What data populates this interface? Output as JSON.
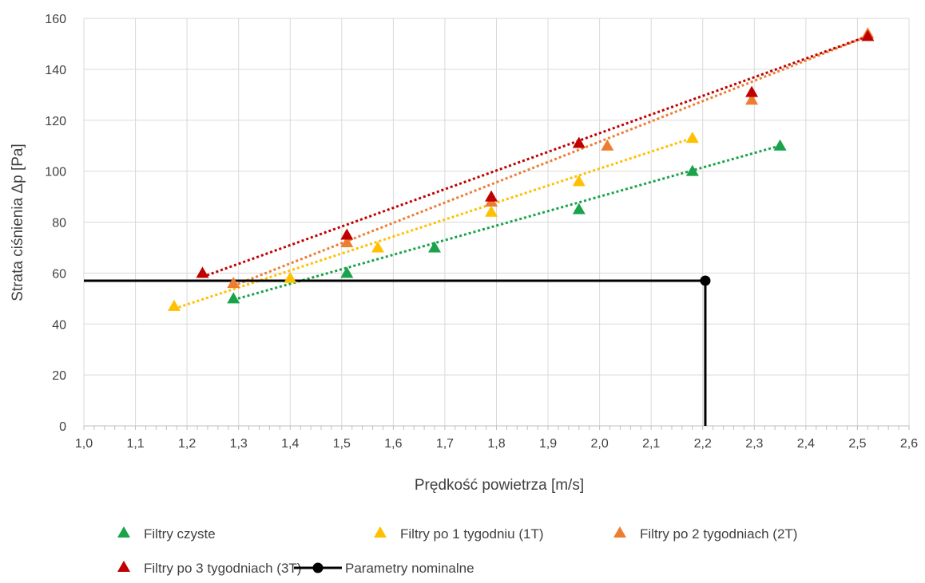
{
  "chart_data": {
    "type": "scatter",
    "title": "",
    "xlabel": "Prędkość powietrza [m/s]",
    "ylabel": "Strata ciśnienia Δp [Pa]",
    "xlim": [
      1.0,
      2.6
    ],
    "ylim": [
      0,
      160
    ],
    "xticks": [
      "1,0",
      "1,1",
      "1,2",
      "1,3",
      "1,4",
      "1,5",
      "1,6",
      "1,7",
      "1,8",
      "1,9",
      "2,0",
      "2,1",
      "2,2",
      "2,3",
      "2,4",
      "2,5",
      "2,6"
    ],
    "yticks": [
      "0",
      "20",
      "40",
      "60",
      "80",
      "100",
      "120",
      "140",
      "160"
    ],
    "grid": true,
    "legend_position": "bottom",
    "series": [
      {
        "name": "Filtry czyste",
        "color": "#1aa34a",
        "marker": "triangle",
        "points": [
          [
            1.29,
            50
          ],
          [
            1.51,
            60
          ],
          [
            1.68,
            70
          ],
          [
            1.96,
            85
          ],
          [
            2.18,
            100
          ],
          [
            2.35,
            110
          ]
        ],
        "trendline": {
          "style": "dotted",
          "from": [
            1.29,
            49.5
          ],
          "to": [
            2.35,
            110
          ]
        }
      },
      {
        "name": "Filtry po 1 tygodniu (1T)",
        "color": "#ffc000",
        "marker": "triangle",
        "points": [
          [
            1.175,
            47
          ],
          [
            1.4,
            58
          ],
          [
            1.57,
            70
          ],
          [
            1.79,
            84
          ],
          [
            1.96,
            96
          ],
          [
            2.18,
            113
          ]
        ],
        "trendline": {
          "style": "dotted",
          "from": [
            1.175,
            46
          ],
          "to": [
            2.18,
            113
          ]
        }
      },
      {
        "name": "Filtry po 2 tygodniach (2T)",
        "color": "#ed7d31",
        "marker": "triangle",
        "points": [
          [
            1.29,
            56
          ],
          [
            1.51,
            72
          ],
          [
            1.79,
            88
          ],
          [
            2.015,
            110
          ],
          [
            2.295,
            128
          ],
          [
            2.52,
            154
          ]
        ],
        "trendline": {
          "style": "dotted",
          "from": [
            1.29,
            55
          ],
          "to": [
            2.52,
            153
          ]
        }
      },
      {
        "name": "Filtry po 3 tygodniach (3T)",
        "color": "#c00000",
        "marker": "triangle",
        "points": [
          [
            1.23,
            60
          ],
          [
            1.51,
            75
          ],
          [
            1.79,
            90
          ],
          [
            1.96,
            111
          ],
          [
            2.295,
            131
          ],
          [
            2.52,
            153
          ]
        ],
        "trendline": {
          "style": "dotted",
          "from": [
            1.23,
            58.5
          ],
          "to": [
            2.52,
            153
          ]
        }
      },
      {
        "name": "Parametry nominalne",
        "color": "#000000",
        "marker": "circle",
        "points": [
          [
            2.205,
            57
          ]
        ],
        "reference_lines": {
          "horizontal_from_x": 1.0,
          "vertical_to_y": 0
        }
      }
    ]
  }
}
